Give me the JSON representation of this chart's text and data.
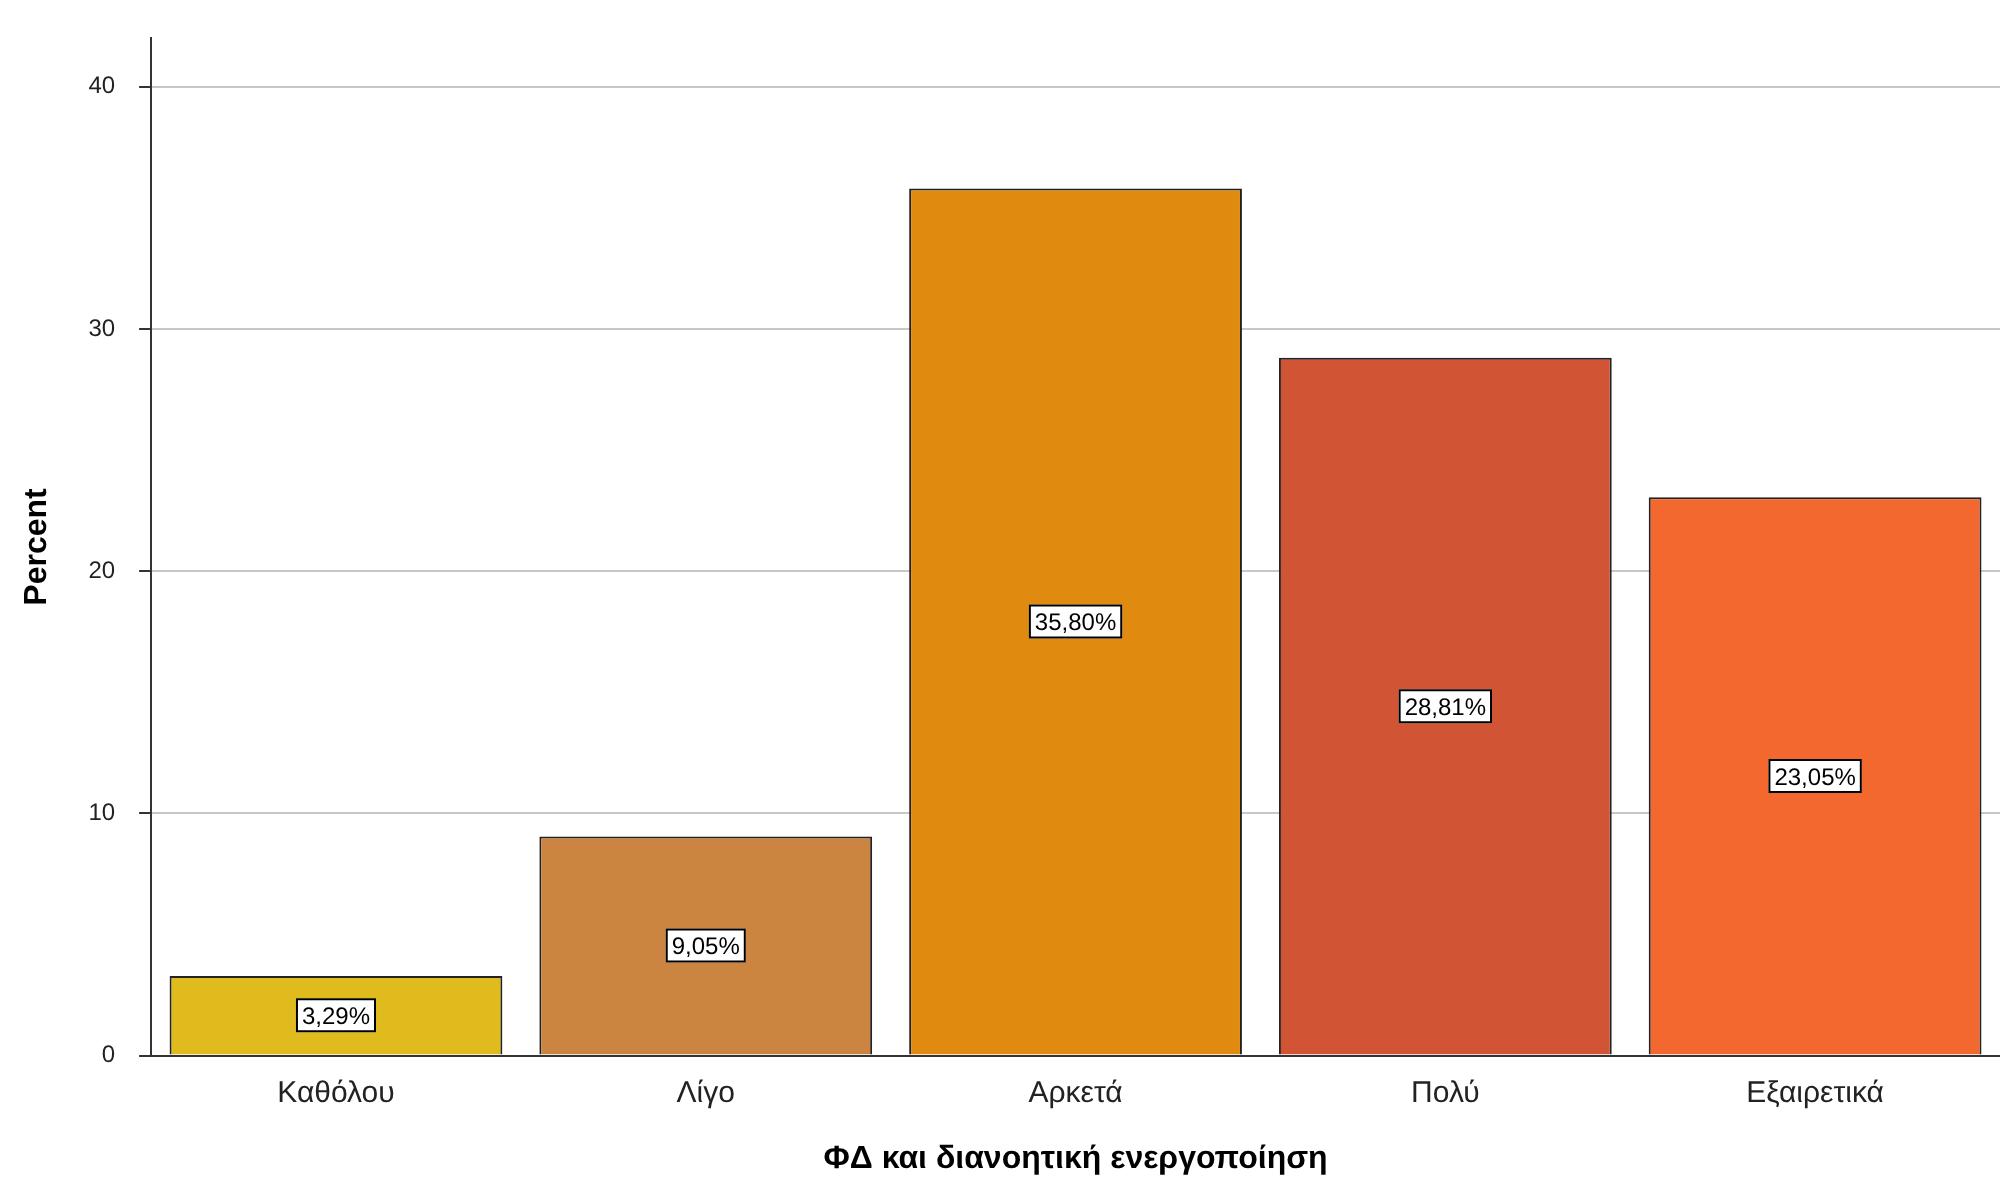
{
  "chart_data": {
    "type": "bar",
    "xlabel": "ΦΔ και διανοητική ενεργοποίηση",
    "ylabel": "Percent",
    "categories": [
      "Καθόλου",
      "Λίγο",
      "Αρκετά",
      "Πολύ",
      "Εξαιρετικά"
    ],
    "values": [
      3.29,
      9.05,
      35.8,
      28.81,
      23.05
    ],
    "colors": [
      "#e0bb1e",
      "#cc8540",
      "#e08a10",
      "#d15434",
      "#f2682e"
    ],
    "value_labels": [
      "3,29%",
      "9,05%",
      "35,80%",
      "28,81%",
      "23,05%"
    ],
    "ylim": [
      0,
      42
    ],
    "yticks": [
      0,
      10,
      20,
      30,
      40
    ],
    "grid": "y",
    "legend": false
  }
}
